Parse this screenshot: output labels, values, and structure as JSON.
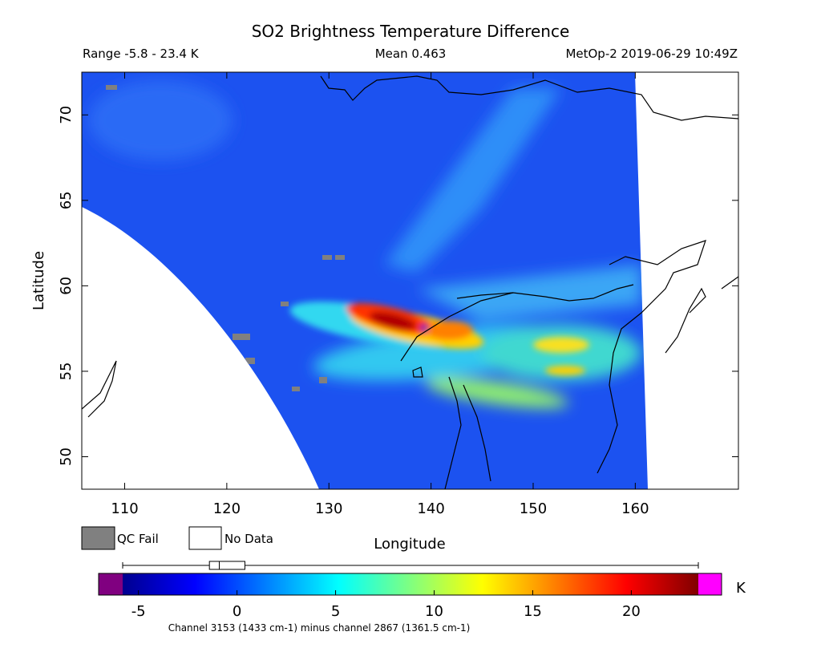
{
  "title": "SO2 Brightness Temperature Difference",
  "header": {
    "range": "Range -5.8 - 23.4 K",
    "mean": "Mean 0.463",
    "source": "MetOp-2 2019-06-29 10:49Z"
  },
  "map": {
    "xlabel": "Longitude",
    "ylabel": "Latitude",
    "xlim": [
      105.8,
      170.1
    ],
    "ylim": [
      48.1,
      72.5
    ],
    "xticks": [
      110,
      120,
      130,
      140,
      150,
      160
    ],
    "yticks": [
      50,
      55,
      60,
      65,
      70
    ]
  },
  "legend": {
    "qc_fail": "QC Fail",
    "no_data": "No Data",
    "qc_color": "#808080"
  },
  "colorbar": {
    "unit": "K",
    "lim": [
      -5.8,
      23.4
    ],
    "ticks": [
      -5,
      0,
      5,
      10,
      15,
      20
    ],
    "colors": [
      "#00008f",
      "#0000ff",
      "#0080ff",
      "#00ffff",
      "#80ff80",
      "#ffff00",
      "#ff8000",
      "#ff0000",
      "#800000"
    ],
    "under_color": "#800080",
    "over_color": "#ff00ff",
    "boxplot": {
      "min": -5.8,
      "q1": -1.4,
      "median": -0.9,
      "q3": 0.4,
      "max": 23.4
    },
    "caption": "Channel 3153 (1433 cm-1) minus channel 2867 (1361.5 cm-1)"
  }
}
